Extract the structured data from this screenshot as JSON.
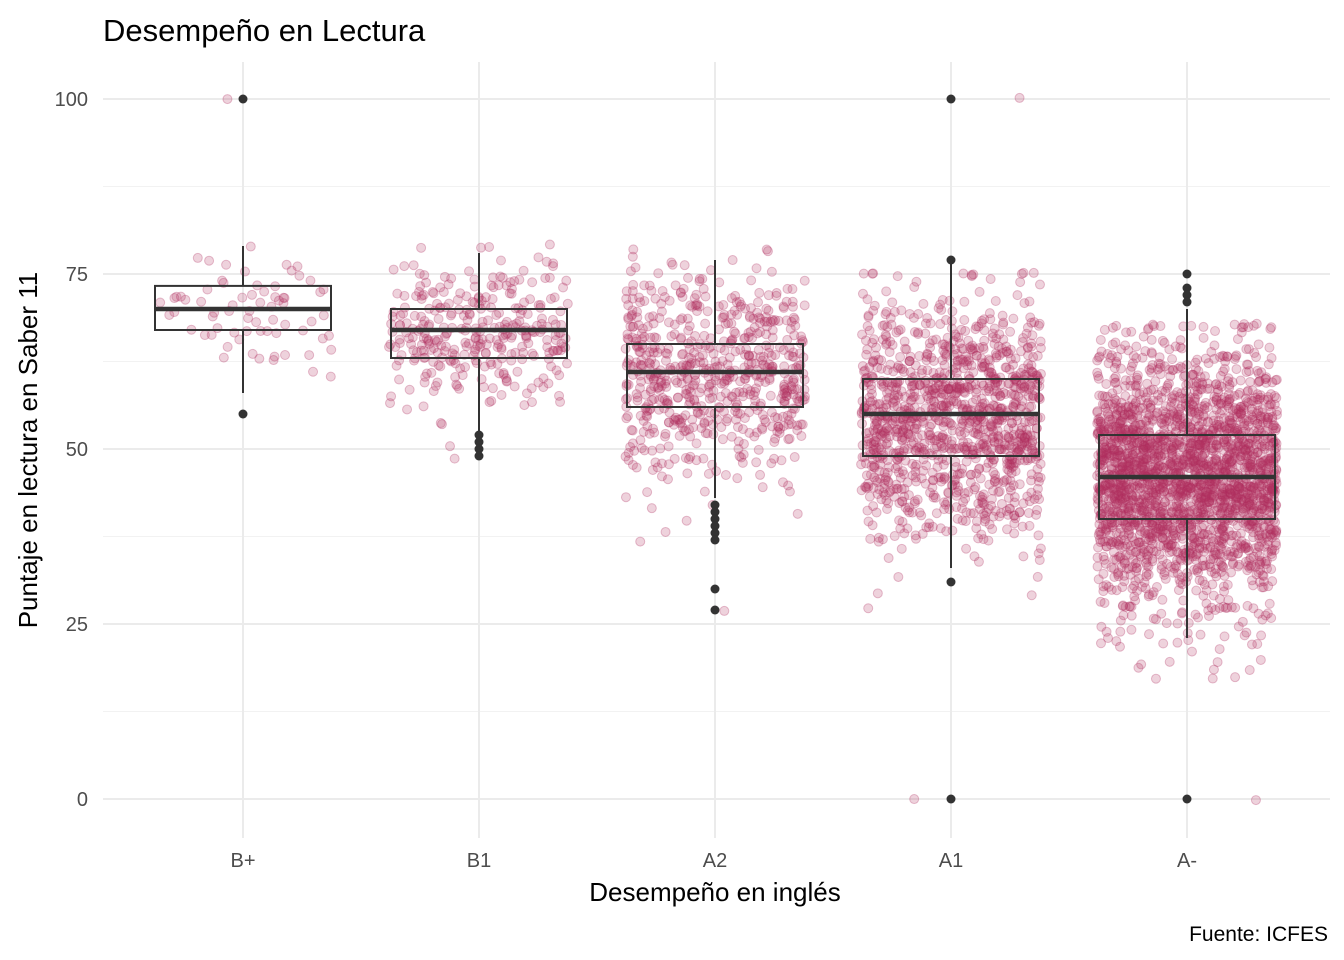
{
  "chart_data": {
    "type": "boxplot",
    "title": "Desempeño en Lectura",
    "xlabel": "Desempeño en inglés",
    "ylabel": "Puntaje en lectura en Saber 11",
    "caption": "Fuente: ICFES",
    "ylim": [
      -8,
      108
    ],
    "yticks": [
      0,
      25,
      50,
      75,
      100
    ],
    "grid": true,
    "point_color": "#b03060",
    "box_color": "#333333",
    "categories": [
      "B+",
      "B1",
      "A2",
      "A1",
      "A-"
    ],
    "boxes": [
      {
        "category": "B+",
        "whisker_low": 58,
        "q1": 67,
        "median": 70,
        "q3": 73.3,
        "whisker_high": 79,
        "outliers": [
          100,
          55
        ]
      },
      {
        "category": "B1",
        "whisker_low": 52.5,
        "q1": 63,
        "median": 67,
        "q3": 70,
        "whisker_high": 78,
        "outliers": [
          52,
          51,
          50,
          49
        ]
      },
      {
        "category": "A2",
        "whisker_low": 43,
        "q1": 56,
        "median": 61,
        "q3": 65,
        "whisker_high": 77,
        "outliers": [
          42,
          41,
          40,
          39,
          38,
          37,
          30,
          27
        ]
      },
      {
        "category": "A1",
        "whisker_low": 33,
        "q1": 49,
        "median": 55,
        "q3": 60,
        "whisker_high": 77,
        "outliers": [
          100,
          77,
          31,
          0
        ]
      },
      {
        "category": "A-",
        "whisker_low": 23,
        "q1": 40,
        "median": 46,
        "q3": 52,
        "whisker_high": 70,
        "outliers": [
          75,
          73,
          72,
          71,
          0
        ]
      }
    ],
    "jitter_points": [
      {
        "category": "B+",
        "n": 70,
        "mean": 70,
        "sd": 5,
        "extra": [
          100
        ]
      },
      {
        "category": "B1",
        "n": 320,
        "mean": 66.5,
        "sd": 5.5,
        "extra": []
      },
      {
        "category": "A2",
        "n": 650,
        "mean": 60.5,
        "sd": 7.5,
        "extra": [
          27
        ]
      },
      {
        "category": "A1",
        "n": 1200,
        "mean": 54.5,
        "sd": 8.5,
        "extra": [
          0,
          100
        ]
      },
      {
        "category": "A-",
        "n": 2400,
        "mean": 46,
        "sd": 9,
        "extra": [
          0
        ]
      }
    ]
  }
}
